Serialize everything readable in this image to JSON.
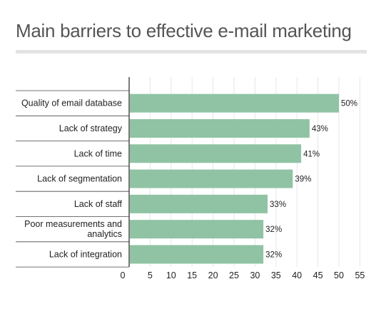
{
  "chart_data": {
    "type": "bar",
    "orientation": "horizontal",
    "title": "Main barriers to effective e-mail marketing",
    "xlabel": "",
    "ylabel": "",
    "categories": [
      "Quality of email database",
      "Lack of strategy",
      "Lack of time",
      "Lack of segmentation",
      "Lack of staff",
      "Poor measurements and analytics",
      "Lack of integration"
    ],
    "values": [
      50,
      43,
      41,
      39,
      33,
      32,
      32
    ],
    "value_labels": [
      "50%",
      "43%",
      "41%",
      "39%",
      "33%",
      "32%",
      "32%"
    ],
    "xlim": [
      0,
      55
    ],
    "xticks": [
      "0",
      "5",
      "10",
      "15",
      "20",
      "25",
      "30",
      "35",
      "40",
      "45",
      "50",
      "55"
    ],
    "grid": "vertical",
    "legend": "none",
    "colors": {
      "bar": "#8fc3a4",
      "grid": "#e6e6e6",
      "axis": "#333333",
      "title_rule": "#e3e3e3"
    }
  }
}
